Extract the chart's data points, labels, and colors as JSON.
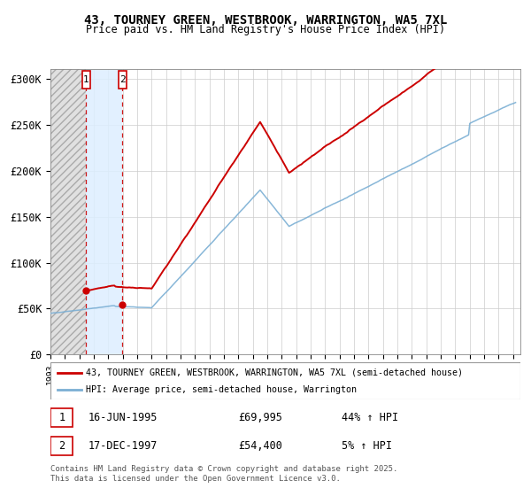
{
  "title1": "43, TOURNEY GREEN, WESTBROOK, WARRINGTON, WA5 7XL",
  "title2": "Price paid vs. HM Land Registry's House Price Index (HPI)",
  "ylabel_ticks": [
    "£0",
    "£50K",
    "£100K",
    "£150K",
    "£200K",
    "£250K",
    "£300K"
  ],
  "ytick_vals": [
    0,
    50000,
    100000,
    150000,
    200000,
    250000,
    300000
  ],
  "ylim": [
    0,
    310000
  ],
  "xlim_start": 1993.0,
  "xlim_end": 2025.5,
  "purchase1_date": 1995.46,
  "purchase1_price": 69995,
  "purchase2_date": 1997.96,
  "purchase2_price": 54400,
  "legend_label1": "43, TOURNEY GREEN, WESTBROOK, WARRINGTON, WA5 7XL (semi-detached house)",
  "legend_label2": "HPI: Average price, semi-detached house, Warrington",
  "note1_date": "16-JUN-1995",
  "note1_price": "£69,995",
  "note1_hpi": "44% ↑ HPI",
  "note2_date": "17-DEC-1997",
  "note2_price": "£54,400",
  "note2_hpi": "5% ↑ HPI",
  "footer": "Contains HM Land Registry data © Crown copyright and database right 2025.\nThis data is licensed under the Open Government Licence v3.0.",
  "line_color_red": "#cc0000",
  "line_color_blue": "#7bafd4",
  "shade_color": "#ddeeff",
  "hatch_facecolor": "#e0e0e0"
}
